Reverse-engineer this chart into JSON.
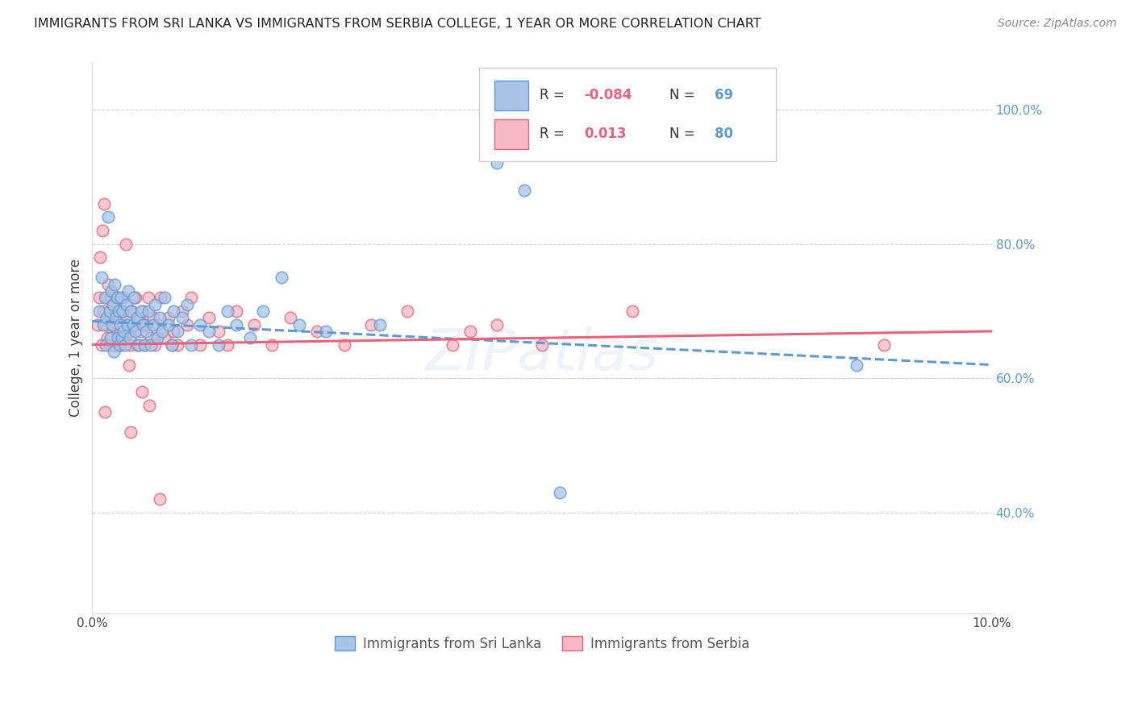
{
  "title": "IMMIGRANTS FROM SRI LANKA VS IMMIGRANTS FROM SERBIA COLLEGE, 1 YEAR OR MORE CORRELATION CHART",
  "source": "Source: ZipAtlas.com",
  "ylabel": "College, 1 year or more",
  "xlim": [
    0.0,
    10.0
  ],
  "ylim": [
    25.0,
    107.0
  ],
  "sri_lanka_color": "#aac4e8",
  "serbia_color": "#f5b8c4",
  "sri_lanka_edge_color": "#5b9bd5",
  "serbia_edge_color": "#e8637a",
  "sri_lanka_line_color": "#5b9bd5",
  "serbia_line_color": "#e8637a",
  "R_sri_lanka": -0.084,
  "N_sri_lanka": 69,
  "R_serbia": 0.013,
  "N_serbia": 80,
  "watermark": "ZIPAtlas",
  "sri_lanka_x": [
    0.08,
    0.1,
    0.12,
    0.14,
    0.15,
    0.16,
    0.18,
    0.19,
    0.2,
    0.21,
    0.22,
    0.23,
    0.24,
    0.25,
    0.26,
    0.27,
    0.28,
    0.29,
    0.3,
    0.31,
    0.32,
    0.33,
    0.34,
    0.35,
    0.36,
    0.38,
    0.39,
    0.4,
    0.42,
    0.43,
    0.45,
    0.46,
    0.48,
    0.5,
    0.52,
    0.54,
    0.56,
    0.58,
    0.6,
    0.62,
    0.65,
    0.68,
    0.7,
    0.72,
    0.75,
    0.78,
    0.8,
    0.85,
    0.88,
    0.9,
    0.95,
    1.0,
    1.05,
    1.1,
    1.2,
    1.3,
    1.4,
    1.5,
    1.6,
    1.75,
    1.9,
    2.1,
    2.3,
    2.6,
    3.2,
    4.5,
    4.8,
    5.2,
    8.5
  ],
  "sri_lanka_y": [
    70.0,
    75.0,
    68.0,
    72.0,
    65.0,
    69.0,
    84.0,
    70.0,
    66.0,
    73.0,
    68.0,
    71.0,
    64.0,
    74.0,
    69.0,
    72.0,
    66.0,
    70.0,
    65.0,
    68.0,
    72.0,
    66.0,
    70.0,
    67.0,
    65.0,
    71.0,
    68.0,
    73.0,
    66.0,
    70.0,
    68.0,
    72.0,
    67.0,
    69.0,
    65.0,
    70.0,
    68.0,
    65.0,
    67.0,
    70.0,
    65.0,
    68.0,
    71.0,
    66.0,
    69.0,
    67.0,
    72.0,
    68.0,
    65.0,
    70.0,
    67.0,
    69.0,
    71.0,
    65.0,
    68.0,
    67.0,
    65.0,
    70.0,
    68.0,
    66.0,
    70.0,
    75.0,
    68.0,
    67.0,
    68.0,
    92.0,
    88.0,
    43.0,
    62.0
  ],
  "serbia_x": [
    0.06,
    0.08,
    0.1,
    0.12,
    0.14,
    0.15,
    0.16,
    0.17,
    0.18,
    0.19,
    0.2,
    0.21,
    0.22,
    0.23,
    0.24,
    0.25,
    0.26,
    0.27,
    0.28,
    0.29,
    0.3,
    0.31,
    0.32,
    0.33,
    0.34,
    0.35,
    0.36,
    0.38,
    0.4,
    0.42,
    0.44,
    0.46,
    0.48,
    0.5,
    0.52,
    0.54,
    0.56,
    0.58,
    0.6,
    0.62,
    0.65,
    0.68,
    0.7,
    0.73,
    0.76,
    0.8,
    0.85,
    0.9,
    0.95,
    1.0,
    1.05,
    1.1,
    1.2,
    1.3,
    1.4,
    1.5,
    1.6,
    1.8,
    2.0,
    2.2,
    2.5,
    2.8,
    3.1,
    3.5,
    4.0,
    4.2,
    4.5,
    5.0,
    6.0,
    8.8,
    0.09,
    0.11,
    0.13,
    0.37,
    0.41,
    0.43,
    0.55,
    0.63,
    0.75,
    0.88
  ],
  "serbia_y": [
    68.0,
    72.0,
    65.0,
    70.0,
    55.0,
    68.0,
    72.0,
    66.0,
    74.0,
    65.0,
    69.0,
    72.0,
    66.0,
    68.0,
    71.0,
    65.0,
    69.0,
    67.0,
    72.0,
    66.0,
    69.0,
    67.0,
    65.0,
    70.0,
    68.0,
    72.0,
    66.0,
    69.0,
    67.0,
    65.0,
    70.0,
    68.0,
    72.0,
    65.0,
    69.0,
    67.0,
    70.0,
    65.0,
    68.0,
    72.0,
    66.0,
    69.0,
    65.0,
    68.0,
    72.0,
    66.0,
    69.0,
    67.0,
    65.0,
    70.0,
    68.0,
    72.0,
    65.0,
    69.0,
    67.0,
    65.0,
    70.0,
    68.0,
    65.0,
    69.0,
    67.0,
    65.0,
    68.0,
    70.0,
    65.0,
    67.0,
    68.0,
    65.0,
    70.0,
    65.0,
    78.0,
    82.0,
    86.0,
    80.0,
    62.0,
    52.0,
    58.0,
    56.0,
    42.0,
    65.0
  ]
}
